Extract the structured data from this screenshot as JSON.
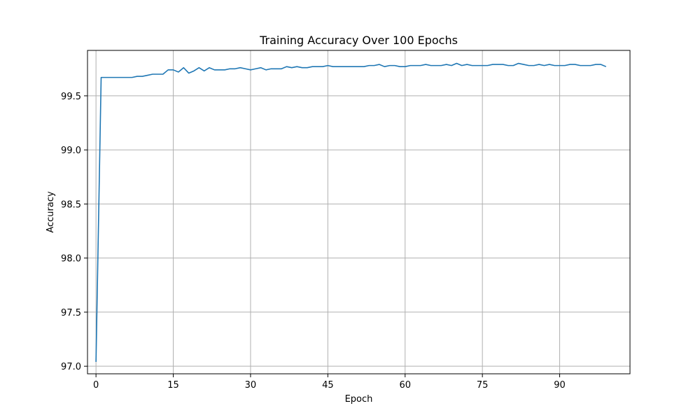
{
  "chart_data": {
    "type": "line",
    "title": "Training Accuracy Over 100 Epochs",
    "xlabel": "Epoch",
    "ylabel": "Accuracy",
    "xlim": [
      -1.65,
      103.65
    ],
    "ylim": [
      96.93,
      99.92
    ],
    "xticks": [
      0,
      15,
      30,
      45,
      60,
      75,
      90
    ],
    "xtick_labels": [
      "0",
      "15",
      "30",
      "45",
      "60",
      "75",
      "90"
    ],
    "yticks": [
      97.0,
      97.5,
      98.0,
      98.5,
      99.0,
      99.5
    ],
    "ytick_labels": [
      "97.0",
      "97.5",
      "98.0",
      "98.5",
      "99.0",
      "99.5"
    ],
    "grid": true,
    "legend": false,
    "series": [
      {
        "color": "#1f77b4",
        "x": [
          0,
          1,
          2,
          3,
          4,
          5,
          6,
          7,
          8,
          9,
          10,
          11,
          12,
          13,
          14,
          15,
          16,
          17,
          18,
          19,
          20,
          21,
          22,
          23,
          24,
          25,
          26,
          27,
          28,
          29,
          30,
          31,
          32,
          33,
          34,
          35,
          36,
          37,
          38,
          39,
          40,
          41,
          42,
          43,
          44,
          45,
          46,
          47,
          48,
          49,
          50,
          51,
          52,
          53,
          54,
          55,
          56,
          57,
          58,
          59,
          60,
          61,
          62,
          63,
          64,
          65,
          66,
          67,
          68,
          69,
          70,
          71,
          72,
          73,
          74,
          75,
          76,
          77,
          78,
          79,
          80,
          81,
          82,
          83,
          84,
          85,
          86,
          87,
          88,
          89,
          90,
          91,
          92,
          93,
          94,
          95,
          96,
          97,
          98,
          99
        ],
        "values": [
          97.04,
          99.67,
          99.67,
          99.67,
          99.67,
          99.67,
          99.67,
          99.67,
          99.68,
          99.68,
          99.69,
          99.7,
          99.7,
          99.7,
          99.74,
          99.74,
          99.72,
          99.76,
          99.71,
          99.73,
          99.76,
          99.73,
          99.76,
          99.74,
          99.74,
          99.74,
          99.75,
          99.75,
          99.76,
          99.75,
          99.74,
          99.75,
          99.76,
          99.74,
          99.75,
          99.75,
          99.75,
          99.77,
          99.76,
          99.77,
          99.76,
          99.76,
          99.77,
          99.77,
          99.77,
          99.78,
          99.77,
          99.77,
          99.77,
          99.77,
          99.77,
          99.77,
          99.77,
          99.78,
          99.78,
          99.79,
          99.77,
          99.78,
          99.78,
          99.77,
          99.77,
          99.78,
          99.78,
          99.78,
          99.79,
          99.78,
          99.78,
          99.78,
          99.79,
          99.78,
          99.8,
          99.78,
          99.79,
          99.78,
          99.78,
          99.78,
          99.78,
          99.79,
          99.79,
          99.79,
          99.78,
          99.78,
          99.8,
          99.79,
          99.78,
          99.78,
          99.79,
          99.78,
          99.79,
          99.78,
          99.78,
          99.78,
          99.79,
          99.79,
          99.78,
          99.78,
          99.78,
          99.79,
          99.79,
          99.77
        ]
      }
    ]
  }
}
